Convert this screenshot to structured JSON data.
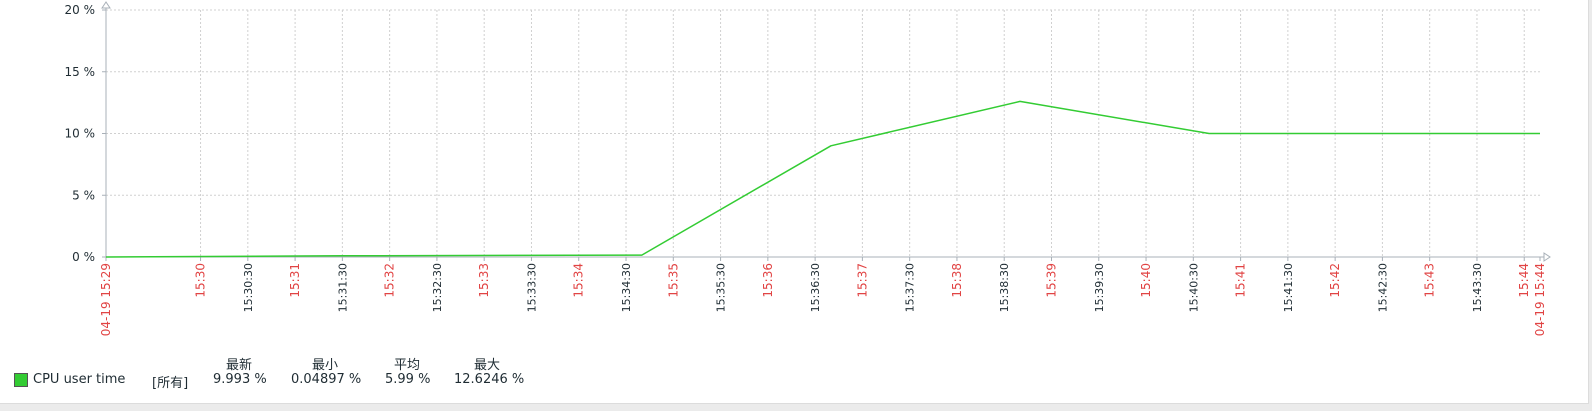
{
  "chart_data": {
    "type": "line",
    "title": "",
    "xlabel": "",
    "ylabel": "",
    "ylim": [
      0,
      20
    ],
    "y_ticks": [
      "0 %",
      "5 %",
      "10 %",
      "15 %",
      "20 %"
    ],
    "x_range": [
      "15:29:00",
      "15:44:10"
    ],
    "x_ticks": [
      {
        "label": "04-19 15:29",
        "t": "15:29:00",
        "major": true
      },
      {
        "label": "15:30",
        "t": "15:30:00",
        "major": true
      },
      {
        "label": "15:30:30",
        "t": "15:30:30",
        "major": false
      },
      {
        "label": "15:31",
        "t": "15:31:00",
        "major": true
      },
      {
        "label": "15:31:30",
        "t": "15:31:30",
        "major": false
      },
      {
        "label": "15:32",
        "t": "15:32:00",
        "major": true
      },
      {
        "label": "15:32:30",
        "t": "15:32:30",
        "major": false
      },
      {
        "label": "15:33",
        "t": "15:33:00",
        "major": true
      },
      {
        "label": "15:33:30",
        "t": "15:33:30",
        "major": false
      },
      {
        "label": "15:34",
        "t": "15:34:00",
        "major": true
      },
      {
        "label": "15:34:30",
        "t": "15:34:30",
        "major": false
      },
      {
        "label": "15:35",
        "t": "15:35:00",
        "major": true
      },
      {
        "label": "15:35:30",
        "t": "15:35:30",
        "major": false
      },
      {
        "label": "15:36",
        "t": "15:36:00",
        "major": true
      },
      {
        "label": "15:36:30",
        "t": "15:36:30",
        "major": false
      },
      {
        "label": "15:37",
        "t": "15:37:00",
        "major": true
      },
      {
        "label": "15:37:30",
        "t": "15:37:30",
        "major": false
      },
      {
        "label": "15:38",
        "t": "15:38:00",
        "major": true
      },
      {
        "label": "15:38:30",
        "t": "15:38:30",
        "major": false
      },
      {
        "label": "15:39",
        "t": "15:39:00",
        "major": true
      },
      {
        "label": "15:39:30",
        "t": "15:39:30",
        "major": false
      },
      {
        "label": "15:40",
        "t": "15:40:00",
        "major": true
      },
      {
        "label": "15:40:30",
        "t": "15:40:30",
        "major": false
      },
      {
        "label": "15:41",
        "t": "15:41:00",
        "major": true
      },
      {
        "label": "15:41:30",
        "t": "15:41:30",
        "major": false
      },
      {
        "label": "15:42",
        "t": "15:42:00",
        "major": true
      },
      {
        "label": "15:42:30",
        "t": "15:42:30",
        "major": false
      },
      {
        "label": "15:43",
        "t": "15:43:00",
        "major": true
      },
      {
        "label": "15:43:30",
        "t": "15:43:30",
        "major": false
      },
      {
        "label": "15:44",
        "t": "15:44:00",
        "major": true
      },
      {
        "label": "04-19 15:44",
        "t": "15:44:10",
        "major": true
      }
    ],
    "series": [
      {
        "name": "CPU user time",
        "color": "#33cc33",
        "points": [
          {
            "t": "15:29:00",
            "y": 0.0
          },
          {
            "t": "15:31:30",
            "y": 0.1
          },
          {
            "t": "15:34:40",
            "y": 0.15
          },
          {
            "t": "15:36:40",
            "y": 9.0
          },
          {
            "t": "15:38:40",
            "y": 12.6
          },
          {
            "t": "15:40:40",
            "y": 10.0
          },
          {
            "t": "15:44:10",
            "y": 10.0
          }
        ]
      }
    ],
    "grid": true
  },
  "colors": {
    "major_tick": "#e14444",
    "minor_tick": "#1f2c33",
    "grid": "#d0d0d0",
    "axis": "#a8b0b8"
  },
  "legend": {
    "headers": [
      "最新",
      "最小",
      "平均",
      "最大"
    ],
    "row": {
      "name": "CPU user time",
      "function": "[所有]",
      "last": "9.993 %",
      "min": "0.04897 %",
      "avg": "5.99 %",
      "max": "12.6246 %"
    }
  }
}
